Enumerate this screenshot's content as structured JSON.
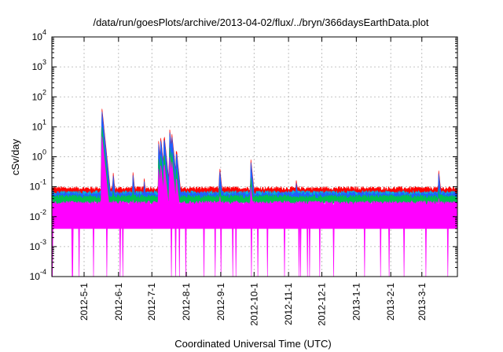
{
  "chart_data": {
    "type": "line",
    "title": "/data/run/goesPlots/archive/2013-04-02/flux/../bryn/366daysEarthData.plot",
    "xlabel": "Coordinated Universal Time (UTC)",
    "ylabel": "cSv/day",
    "yscale": "log",
    "ylim": [
      0.0001,
      10000
    ],
    "xlim": [
      "2012-04-02",
      "2013-04-02"
    ],
    "y_ticks": [
      {
        "base": "10",
        "exp": "-4",
        "value": 0.0001
      },
      {
        "base": "10",
        "exp": "-3",
        "value": 0.001
      },
      {
        "base": "10",
        "exp": "-2",
        "value": 0.01
      },
      {
        "base": "10",
        "exp": "-1",
        "value": 0.1
      },
      {
        "base": "10",
        "exp": "0",
        "value": 1
      },
      {
        "base": "10",
        "exp": "1",
        "value": 10
      },
      {
        "base": "10",
        "exp": "2",
        "value": 100
      },
      {
        "base": "10",
        "exp": "3",
        "value": 1000
      },
      {
        "base": "10",
        "exp": "4",
        "value": 10000
      }
    ],
    "x_ticks": [
      "2012-5-1",
      "2012-6-1",
      "2012-7-1",
      "2012-8-1",
      "2012-9-1",
      "2012-10-1",
      "2012-11-1",
      "2012-12-1",
      "2013-1-1",
      "2013-2-1",
      "2013-3-1"
    ],
    "grid": true,
    "legend": "none",
    "series": [
      {
        "color": "#ff0000",
        "baseline": 0.075
      },
      {
        "color": "#00b4e0",
        "baseline": 0.055
      },
      {
        "color": "#2060ff",
        "baseline": 0.05
      },
      {
        "color": "#00c050",
        "baseline": 0.04
      },
      {
        "color": "#ff00ff",
        "baseline": 0.025,
        "floor": 0.004,
        "dropout_floor": 0.0001
      }
    ],
    "events": [
      {
        "date": "2012-05-17",
        "peak": 45
      },
      {
        "date": "2012-05-27",
        "peak": 0.35
      },
      {
        "date": "2012-06-14",
        "peak": 0.3
      },
      {
        "date": "2012-06-24",
        "peak": 0.2
      },
      {
        "date": "2012-07-07",
        "peak": 3.5
      },
      {
        "date": "2012-07-09",
        "peak": 4.5
      },
      {
        "date": "2012-07-12",
        "peak": 6
      },
      {
        "date": "2012-07-17",
        "peak": 9
      },
      {
        "date": "2012-07-19",
        "peak": 6
      },
      {
        "date": "2012-07-23",
        "peak": 2
      },
      {
        "date": "2012-08-31",
        "peak": 0.5
      },
      {
        "date": "2012-09-28",
        "peak": 0.9
      },
      {
        "date": "2012-11-08",
        "peak": 0.18
      },
      {
        "date": "2013-03-16",
        "peak": 0.4
      }
    ]
  }
}
